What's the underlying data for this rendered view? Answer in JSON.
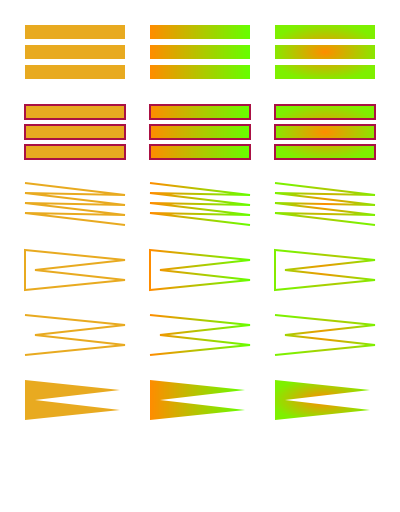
{
  "colors": {
    "solid": "#e8aa20",
    "gradient_start": "#ff8c00",
    "gradient_end": "#66ff00",
    "radial_center": "#ff8c00",
    "radial_outer": "#7ef000",
    "stroke_dark": "#aa1144"
  },
  "columns": [
    {
      "name": "solid-fill",
      "fill": "solid"
    },
    {
      "name": "linear-gradient",
      "fill": "linear"
    },
    {
      "name": "radial-gradient",
      "fill": "radial"
    }
  ],
  "rows": [
    {
      "name": "filled-bars"
    },
    {
      "name": "stroked-bars"
    },
    {
      "name": "open-zigzag-lines"
    },
    {
      "name": "closed-triangle-outline"
    },
    {
      "name": "zigzag-polyline"
    },
    {
      "name": "filled-arrow-shape"
    }
  ]
}
